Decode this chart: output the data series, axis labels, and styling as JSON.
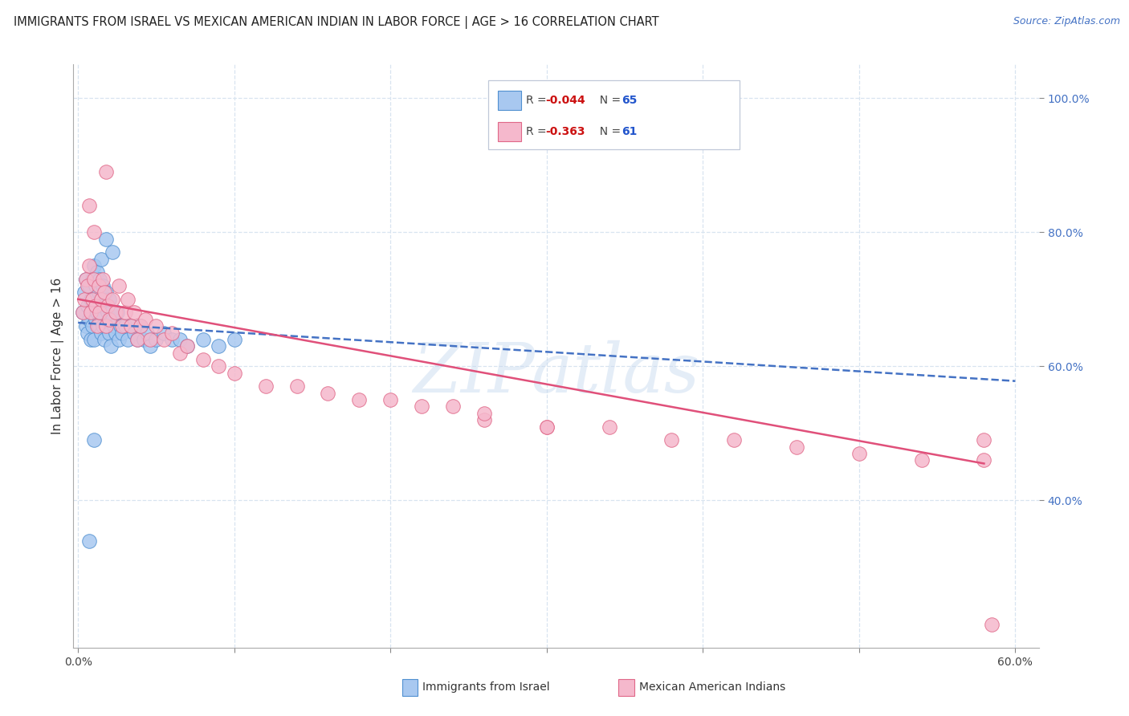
{
  "title": "IMMIGRANTS FROM ISRAEL VS MEXICAN AMERICAN INDIAN IN LABOR FORCE | AGE > 16 CORRELATION CHART",
  "source": "Source: ZipAtlas.com",
  "ylabel": "In Labor Force | Age > 16",
  "xlim": [
    -0.003,
    0.615
  ],
  "ylim": [
    0.18,
    1.05
  ],
  "xticks": [
    0.0,
    0.1,
    0.2,
    0.3,
    0.4,
    0.5,
    0.6
  ],
  "xticklabels": [
    "0.0%",
    "",
    "",
    "",
    "",
    "",
    "60.0%"
  ],
  "yticks_right": [
    0.4,
    0.6,
    0.8,
    1.0
  ],
  "yticklabels_right": [
    "40.0%",
    "60.0%",
    "80.0%",
    "100.0%"
  ],
  "watermark": "ZIPatlas",
  "legend_r1": "-0.044",
  "legend_n1": "65",
  "legend_r2": "-0.363",
  "legend_n2": "61",
  "blue_color": "#a8c8f0",
  "pink_color": "#f5b8cc",
  "blue_edge": "#5090d0",
  "pink_edge": "#e06888",
  "trend_blue": "#4472c4",
  "trend_pink": "#e0507a",
  "background": "#ffffff",
  "grid_color": "#d8e4f0",
  "blue_scatter_x": [
    0.003,
    0.004,
    0.005,
    0.005,
    0.006,
    0.006,
    0.007,
    0.007,
    0.008,
    0.008,
    0.009,
    0.009,
    0.01,
    0.01,
    0.01,
    0.011,
    0.011,
    0.012,
    0.012,
    0.013,
    0.013,
    0.014,
    0.014,
    0.015,
    0.015,
    0.016,
    0.016,
    0.017,
    0.017,
    0.018,
    0.018,
    0.019,
    0.02,
    0.02,
    0.021,
    0.021,
    0.022,
    0.023,
    0.024,
    0.025,
    0.026,
    0.027,
    0.028,
    0.03,
    0.032,
    0.034,
    0.036,
    0.038,
    0.04,
    0.042,
    0.044,
    0.046,
    0.05,
    0.055,
    0.06,
    0.065,
    0.07,
    0.08,
    0.09,
    0.1,
    0.007,
    0.01,
    0.015,
    0.018,
    0.022
  ],
  "blue_scatter_y": [
    0.68,
    0.71,
    0.73,
    0.66,
    0.69,
    0.65,
    0.72,
    0.67,
    0.7,
    0.64,
    0.73,
    0.66,
    0.75,
    0.7,
    0.64,
    0.72,
    0.67,
    0.74,
    0.68,
    0.71,
    0.66,
    0.73,
    0.67,
    0.7,
    0.65,
    0.72,
    0.66,
    0.69,
    0.64,
    0.71,
    0.66,
    0.68,
    0.7,
    0.65,
    0.68,
    0.63,
    0.67,
    0.66,
    0.65,
    0.68,
    0.64,
    0.66,
    0.65,
    0.66,
    0.64,
    0.66,
    0.65,
    0.64,
    0.66,
    0.64,
    0.65,
    0.63,
    0.64,
    0.65,
    0.64,
    0.64,
    0.63,
    0.64,
    0.63,
    0.64,
    0.34,
    0.49,
    0.76,
    0.79,
    0.77
  ],
  "pink_scatter_x": [
    0.003,
    0.004,
    0.005,
    0.006,
    0.007,
    0.008,
    0.009,
    0.01,
    0.011,
    0.012,
    0.013,
    0.014,
    0.015,
    0.016,
    0.017,
    0.018,
    0.019,
    0.02,
    0.022,
    0.024,
    0.026,
    0.028,
    0.03,
    0.032,
    0.034,
    0.036,
    0.038,
    0.04,
    0.043,
    0.046,
    0.05,
    0.055,
    0.06,
    0.065,
    0.07,
    0.08,
    0.09,
    0.1,
    0.12,
    0.14,
    0.16,
    0.18,
    0.2,
    0.22,
    0.24,
    0.26,
    0.3,
    0.34,
    0.38,
    0.42,
    0.46,
    0.5,
    0.54,
    0.58,
    0.007,
    0.01,
    0.018,
    0.26,
    0.3,
    0.58,
    0.585
  ],
  "pink_scatter_y": [
    0.68,
    0.7,
    0.73,
    0.72,
    0.75,
    0.68,
    0.7,
    0.73,
    0.69,
    0.66,
    0.72,
    0.68,
    0.7,
    0.73,
    0.71,
    0.66,
    0.69,
    0.67,
    0.7,
    0.68,
    0.72,
    0.66,
    0.68,
    0.7,
    0.66,
    0.68,
    0.64,
    0.66,
    0.67,
    0.64,
    0.66,
    0.64,
    0.65,
    0.62,
    0.63,
    0.61,
    0.6,
    0.59,
    0.57,
    0.57,
    0.56,
    0.55,
    0.55,
    0.54,
    0.54,
    0.52,
    0.51,
    0.51,
    0.49,
    0.49,
    0.48,
    0.47,
    0.46,
    0.46,
    0.84,
    0.8,
    0.89,
    0.53,
    0.51,
    0.49,
    0.215
  ],
  "blue_trend_x": [
    0.0,
    0.6
  ],
  "blue_trend_y": [
    0.665,
    0.578
  ],
  "pink_trend_x": [
    0.0,
    0.58
  ],
  "pink_trend_y": [
    0.7,
    0.455
  ]
}
